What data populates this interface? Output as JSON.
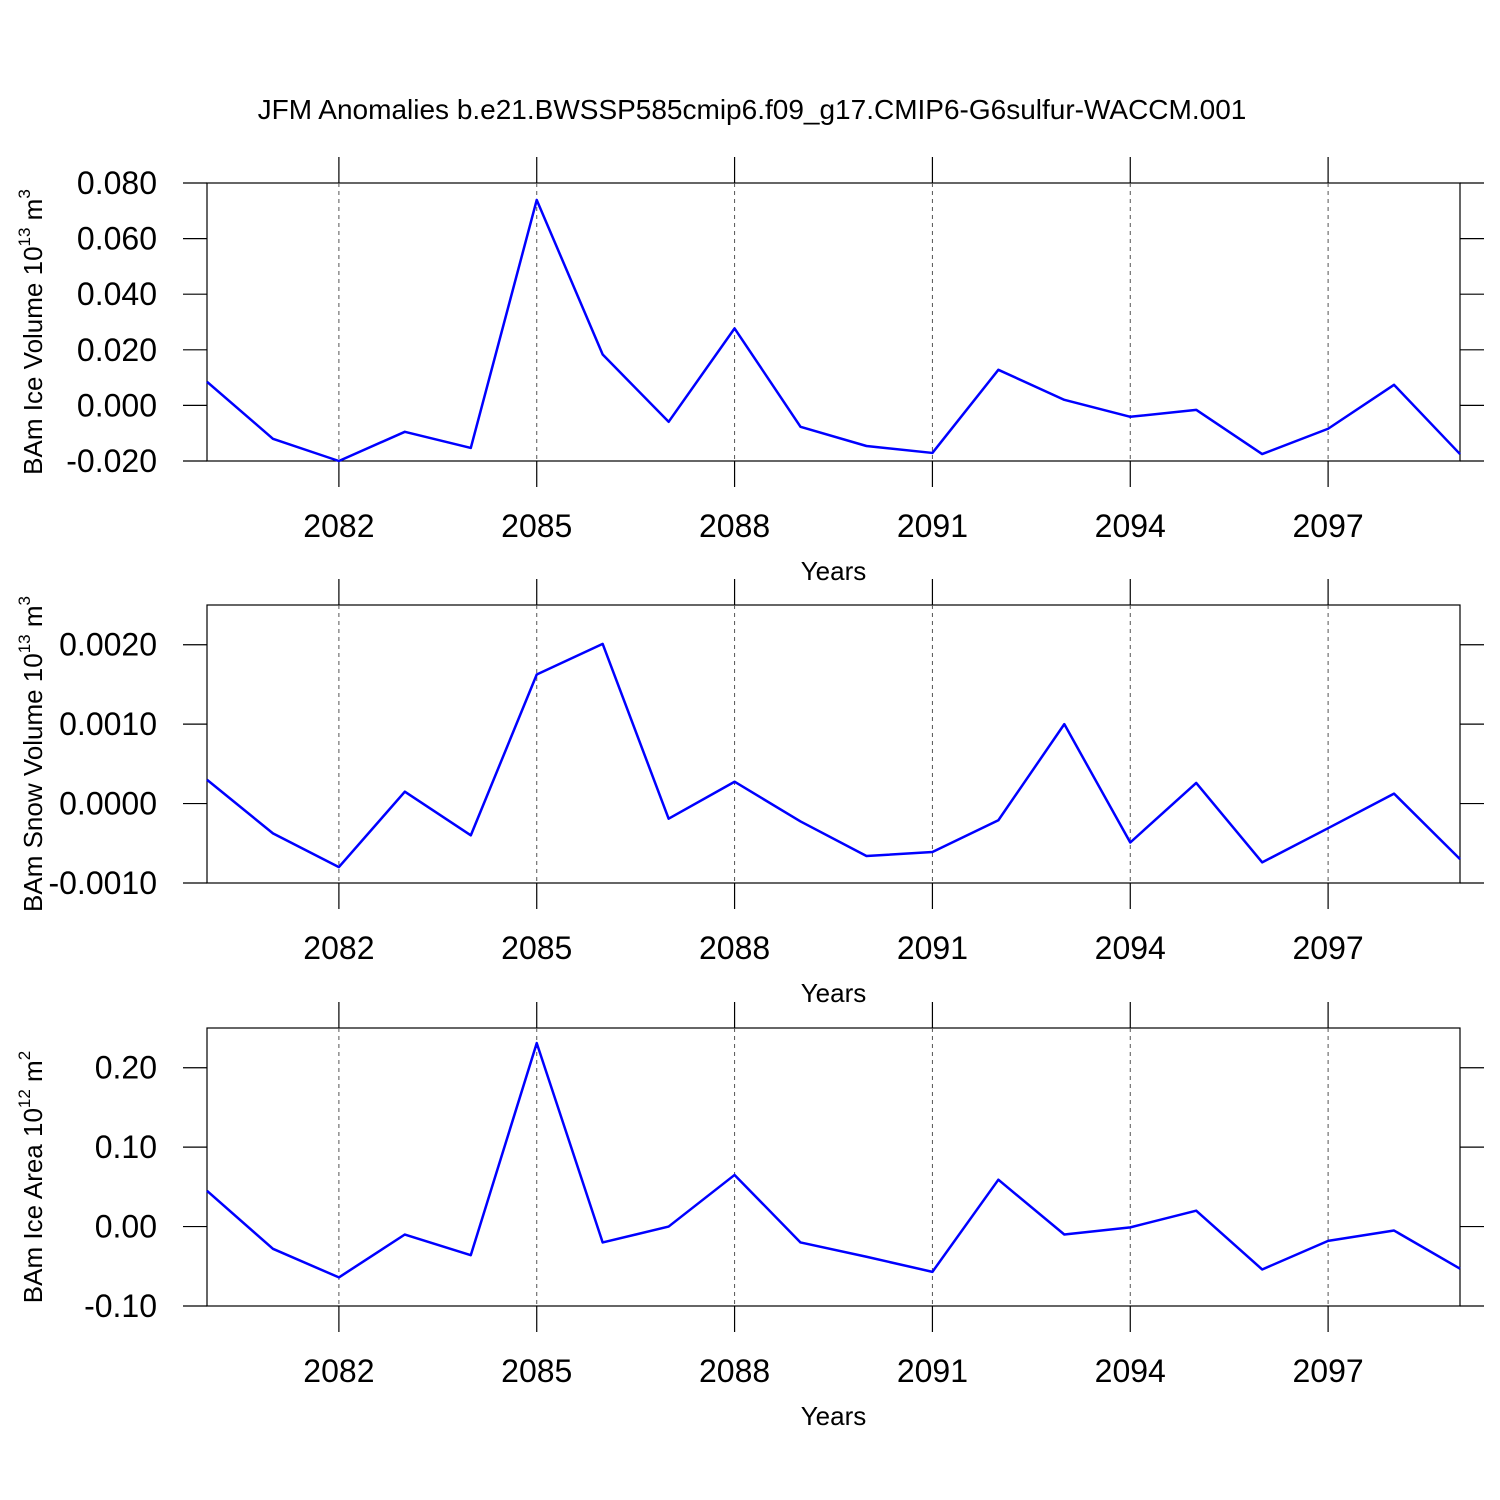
{
  "title": "JFM Anomalies b.e21.BWSSP585cmip6.f09_g17.CMIP6-G6sulfur-WACCM.001",
  "chart_data": [
    {
      "type": "line",
      "xlabel": "Years",
      "ylabel": [
        "BAm Ice Volume 10",
        "13",
        " m",
        "3"
      ],
      "x": [
        2080,
        2081,
        2082,
        2083,
        2084,
        2085,
        2086,
        2087,
        2088,
        2089,
        2090,
        2091,
        2092,
        2093,
        2094,
        2095,
        2096,
        2097,
        2098,
        2099
      ],
      "series": [
        {
          "color": "#0000ff",
          "values": [
            0.0085,
            -0.012,
            -0.02,
            -0.0095,
            -0.0153,
            0.0739,
            0.0183,
            -0.0059,
            0.0277,
            -0.0077,
            -0.0146,
            -0.0171,
            0.0128,
            0.002,
            -0.0041,
            -0.0016,
            -0.0175,
            -0.0084,
            0.0074,
            -0.0175
          ]
        }
      ],
      "xlim": [
        2080,
        2099
      ],
      "xticks": [
        2082,
        2085,
        2088,
        2091,
        2094,
        2097
      ],
      "xgrid": true,
      "ylim": [
        -0.02,
        0.08
      ],
      "yticks": [
        {
          "value": -0.02,
          "label": "-0.020"
        },
        {
          "value": 0,
          "label": "0.000"
        },
        {
          "value": 0.02,
          "label": "0.020"
        },
        {
          "value": 0.04,
          "label": "0.040"
        },
        {
          "value": 0.06,
          "label": "0.060"
        },
        {
          "value": 0.08,
          "label": "0.080"
        }
      ]
    },
    {
      "type": "line",
      "xlabel": "Years",
      "ylabel": [
        "BAm Snow Volume 10",
        "13",
        " m",
        "3"
      ],
      "x": [
        2080,
        2081,
        2082,
        2083,
        2084,
        2085,
        2086,
        2087,
        2088,
        2089,
        2090,
        2091,
        2092,
        2093,
        2094,
        2095,
        2096,
        2097,
        2098,
        2099
      ],
      "series": [
        {
          "color": "#0000ff",
          "values": [
            0.0003,
            -0.000375,
            -0.0008,
            0.00015,
            -0.0004,
            0.001625,
            0.00201,
            -0.00019,
            0.000275,
            -0.000225,
            -0.00066,
            -0.00061,
            -0.00021,
            0.001,
            -0.00049,
            0.00026,
            -0.00074,
            -0.00031,
            0.000125,
            -0.0007
          ]
        }
      ],
      "xlim": [
        2080,
        2099
      ],
      "xticks": [
        2082,
        2085,
        2088,
        2091,
        2094,
        2097
      ],
      "xgrid": true,
      "ylim": [
        -0.001,
        0.0025
      ],
      "yticks": [
        {
          "value": -0.001,
          "label": "-0.0010"
        },
        {
          "value": 0,
          "label": "0.0000"
        },
        {
          "value": 0.001,
          "label": "0.0010"
        },
        {
          "value": 0.002,
          "label": "0.0020"
        }
      ]
    },
    {
      "type": "line",
      "xlabel": "Years",
      "ylabel": [
        "BAm Ice Area 10",
        "12",
        " m",
        "2"
      ],
      "x": [
        2080,
        2081,
        2082,
        2083,
        2084,
        2085,
        2086,
        2087,
        2088,
        2089,
        2090,
        2091,
        2092,
        2093,
        2094,
        2095,
        2096,
        2097,
        2098,
        2099
      ],
      "series": [
        {
          "color": "#0000ff",
          "values": [
            0.045,
            -0.028,
            -0.064,
            -0.01,
            -0.036,
            0.231,
            -0.02,
            0.0,
            0.065,
            -0.02,
            -0.038,
            -0.057,
            0.059,
            -0.01,
            -0.001,
            0.02,
            -0.054,
            -0.018,
            -0.005,
            -0.053
          ]
        }
      ],
      "xlim": [
        2080,
        2099
      ],
      "xticks": [
        2082,
        2085,
        2088,
        2091,
        2094,
        2097
      ],
      "xgrid": true,
      "ylim": [
        -0.1,
        0.25
      ],
      "yticks": [
        {
          "value": -0.1,
          "label": "-0.10"
        },
        {
          "value": 0,
          "label": "0.00"
        },
        {
          "value": 0.1,
          "label": "0.10"
        },
        {
          "value": 0.2,
          "label": "0.20"
        }
      ]
    }
  ]
}
